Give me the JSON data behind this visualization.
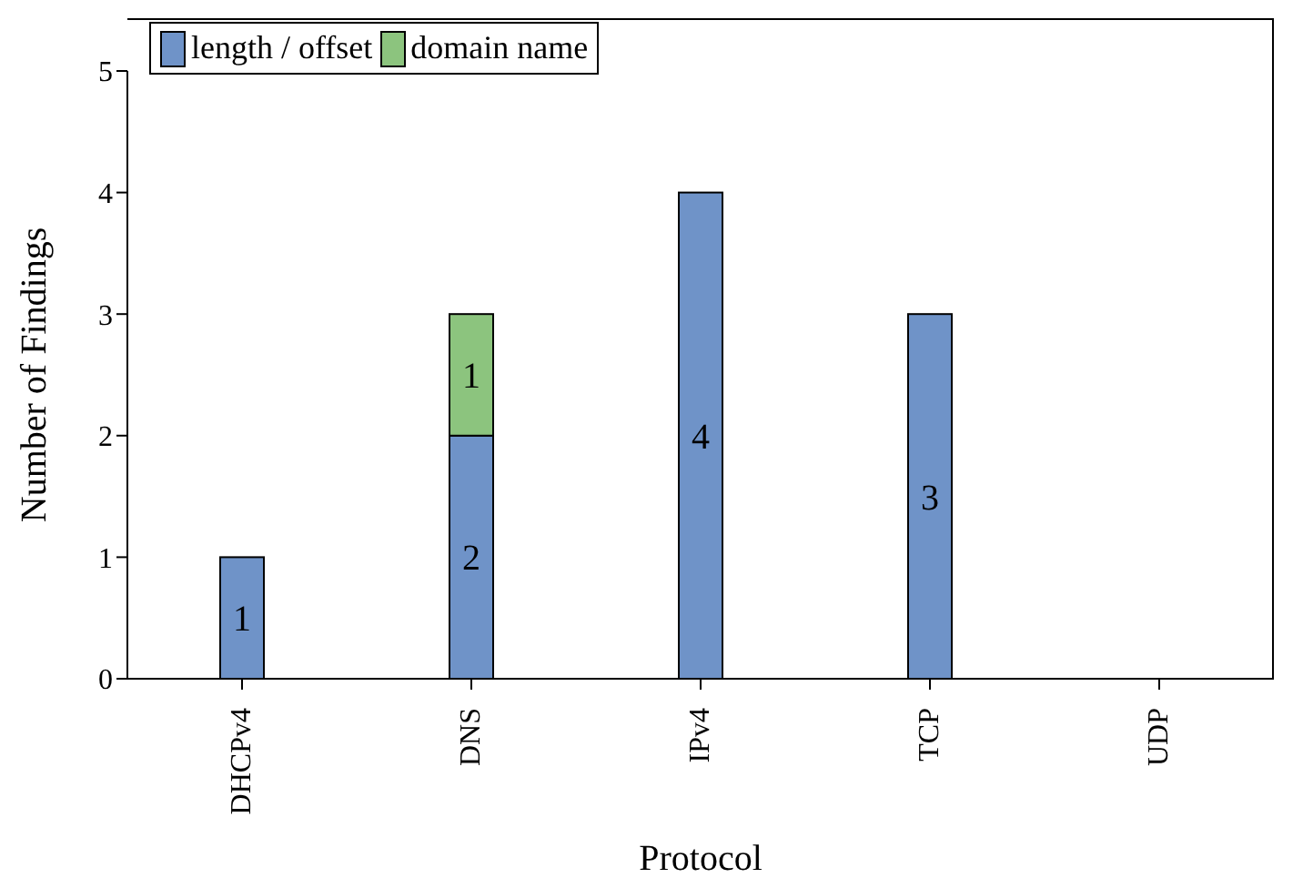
{
  "chart_data": {
    "type": "bar",
    "stacked": true,
    "xlabel": "Protocol",
    "ylabel": "Number of Findings",
    "categories": [
      "DHCPv4",
      "DNS",
      "IPv4",
      "TCP",
      "UDP"
    ],
    "series": [
      {
        "name": "length / offset",
        "color": "#6f93c8",
        "values": [
          1,
          2,
          4,
          3,
          0
        ],
        "value_labels": [
          "1",
          "2",
          "4",
          "3",
          null
        ]
      },
      {
        "name": "domain name",
        "color": "#8cc47e",
        "values": [
          0,
          1,
          0,
          0,
          0
        ],
        "value_labels": [
          null,
          "1",
          null,
          null,
          null
        ]
      }
    ],
    "ylim": [
      0,
      5
    ],
    "yticks": [
      0,
      1,
      2,
      3,
      4,
      5
    ],
    "legend": "top left"
  }
}
